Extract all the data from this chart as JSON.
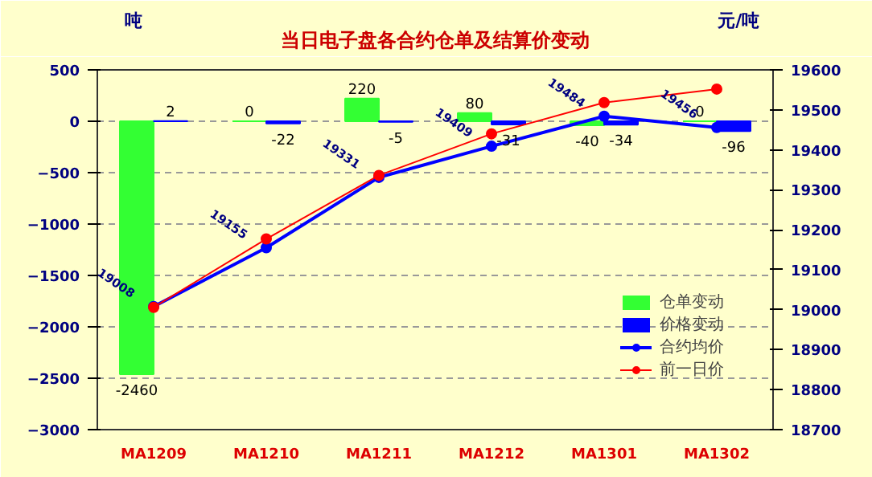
{
  "chart_data": {
    "type": "bar",
    "title": "当日电子盘各合约仓单及结算价变动",
    "ylabel": "吨",
    "y2label": "元/吨",
    "categories": [
      "MA1209",
      "MA1210",
      "MA1211",
      "MA1212",
      "MA1301",
      "MA1302"
    ],
    "series": [
      {
        "name": "仓单变动",
        "color": "#33ff33",
        "values": [
          -2460,
          0,
          220,
          80,
          -40,
          0
        ],
        "data_labels": true
      },
      {
        "name": "价格变动",
        "color": "#0000ff",
        "values": [
          2,
          -22,
          -5,
          -31,
          -34,
          -96
        ],
        "data_labels": true
      },
      {
        "name": "合约均价",
        "type": "line",
        "axis": "y2",
        "color": "#0000ff",
        "marker": "circle",
        "values": [
          19008,
          19155,
          19331,
          19409,
          19484,
          19456
        ],
        "data_labels": true
      },
      {
        "name": "前一日价",
        "type": "line",
        "axis": "y2",
        "color": "#ff0000",
        "marker": "circle",
        "values": [
          19006,
          19177,
          19336,
          19440,
          19518,
          19552
        ]
      }
    ],
    "ylim": [
      -3000,
      500
    ],
    "yticks": [
      -3000,
      -2500,
      -2000,
      -1500,
      -1000,
      -500,
      0,
      500
    ],
    "y2lim": [
      18700,
      19600
    ],
    "y2ticks": [
      18700,
      18800,
      18900,
      19000,
      19100,
      19200,
      19300,
      19400,
      19500,
      19600
    ],
    "grid": "y",
    "legend": "bottom right"
  }
}
